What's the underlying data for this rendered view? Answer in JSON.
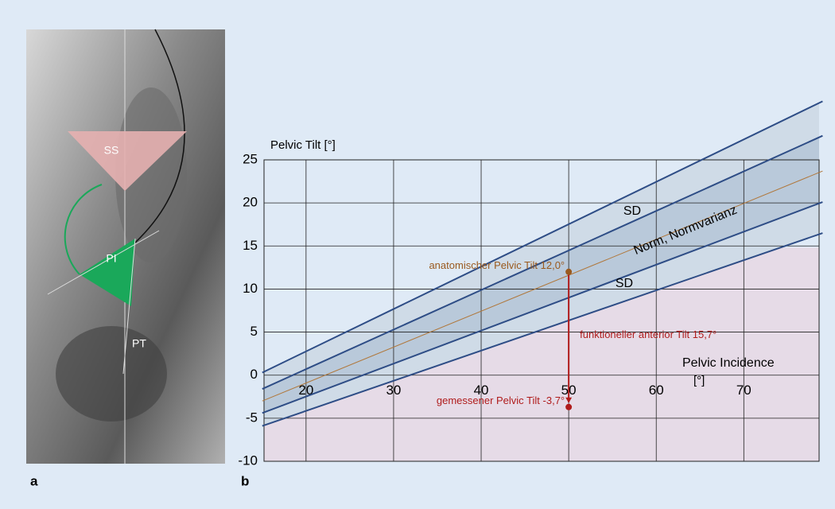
{
  "panel_a": {
    "label": "a",
    "marks": [
      "SS",
      "PI",
      "PT"
    ]
  },
  "panel_b_label": "b",
  "chart_data": {
    "type": "line",
    "y_label": "Pelvic Tilt [°]",
    "x_label": [
      "Pelvic Incidence",
      "[°]"
    ],
    "xlim": [
      15.2,
      78.6
    ],
    "ylim": [
      -10,
      25
    ],
    "xticks": [
      20,
      30,
      40,
      50,
      60,
      70
    ],
    "yticks": [
      -10,
      -5,
      0,
      5,
      10,
      15,
      20,
      25
    ],
    "grid": true,
    "lines": [
      {
        "x": [
          15,
          79
        ],
        "values": [
          0.3,
          31.8
        ],
        "color": "#2e4d86"
      },
      {
        "x": [
          15,
          79
        ],
        "values": [
          -1.6,
          27.8
        ],
        "color": "#2e4d86"
      },
      {
        "x": [
          15,
          79
        ],
        "values": [
          -3.0,
          23.7
        ],
        "color": "#b0773a"
      },
      {
        "x": [
          15,
          79
        ],
        "values": [
          -4.4,
          20.1
        ],
        "color": "#2e4d86"
      },
      {
        "x": [
          15,
          79
        ],
        "values": [
          -5.9,
          16.5
        ],
        "color": "#2e4d86"
      }
    ],
    "annotations": [
      "SD",
      "Norm, Normvarianz",
      "SD"
    ],
    "points": [
      {
        "x": 50,
        "y": 12,
        "label": "anatomischer Pelvic Tilt 12,0°",
        "color": "#9a5a1e"
      },
      {
        "x": 50,
        "y": -3.7,
        "label": "gemessener Pelvic Tilt -3,7°",
        "color": "#b01c1c"
      }
    ],
    "arrow_label": "funktioneller anterior Tilt 15,7°"
  }
}
